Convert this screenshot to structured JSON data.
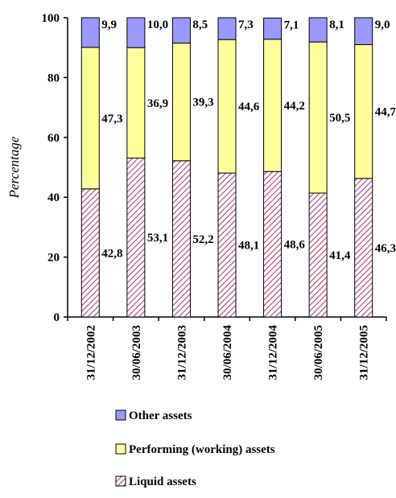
{
  "chart_data": {
    "type": "bar",
    "stacked": true,
    "title": "",
    "xlabel": "",
    "ylabel": "Percentage",
    "ylim": [
      0,
      100
    ],
    "yticks": [
      "0",
      "20",
      "40",
      "60",
      "80",
      "100"
    ],
    "grid": false,
    "legend_position": "bottom",
    "categories": [
      "31/12/2002",
      "30/06/2003",
      "31/12/2003",
      "30/06/2004",
      "31/12/2004",
      "30/06/2005",
      "31/12/2005"
    ],
    "series": [
      {
        "name": "Liquid assets",
        "pattern": "diagonal-hatch",
        "color": "#ffffff",
        "hatch_color": "#b0306a",
        "values": [
          42.8,
          53.1,
          52.2,
          48.1,
          48.6,
          41.4,
          46.3
        ],
        "labels": [
          "42,8",
          "53,1",
          "52,2",
          "48,1",
          "48,6",
          "41,4",
          "46,3"
        ]
      },
      {
        "name": "Performing (working) assets",
        "color": "#ffff99",
        "values": [
          47.3,
          36.9,
          39.3,
          44.6,
          44.2,
          50.5,
          44.7
        ],
        "labels": [
          "47,3",
          "36,9",
          "39,3",
          "44,6",
          "44,2",
          "50,5",
          "44,7"
        ]
      },
      {
        "name": "Other assets",
        "color": "#9999ff",
        "values": [
          9.9,
          10.0,
          8.5,
          7.3,
          7.1,
          8.1,
          9.0
        ],
        "labels": [
          "9,9",
          "10,0",
          "8,5",
          "7,3",
          "7,1",
          "8,1",
          "9,0"
        ]
      }
    ],
    "legend_order": [
      "Other assets",
      "Performing (working) assets",
      "Liquid assets"
    ]
  }
}
